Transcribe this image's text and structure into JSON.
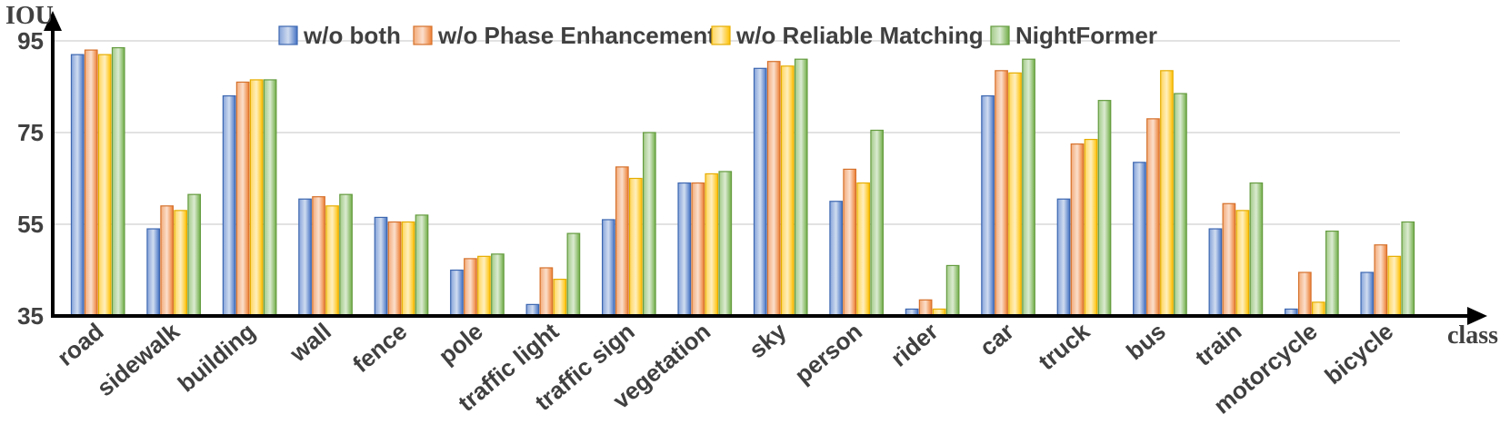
{
  "chart_data": {
    "type": "bar",
    "ylabel": "IOU",
    "xlabel": "class",
    "ylim": [
      35,
      95
    ],
    "yticks": [
      "35",
      "55",
      "75",
      "95"
    ],
    "grid": true,
    "legend_position": "top",
    "categories": [
      "road",
      "sidewalk",
      "building",
      "wall",
      "fence",
      "pole",
      "traffic light",
      "traffic sign",
      "vegetation",
      "sky",
      "person",
      "rider",
      "car",
      "truck",
      "bus",
      "train",
      "motorcycle",
      "bicycle"
    ],
    "series": [
      {
        "name": "w/o both",
        "color": "#4472c4",
        "values": [
          92.0,
          54.0,
          83.0,
          60.5,
          56.5,
          45.0,
          37.5,
          56.0,
          64.0,
          89.0,
          60.0,
          36.5,
          83.0,
          60.5,
          68.5,
          54.0,
          36.5,
          44.5
        ]
      },
      {
        "name": "w/o Phase Enhancement",
        "color": "#ed7d31",
        "values": [
          93.0,
          59.0,
          86.0,
          61.0,
          55.5,
          47.5,
          45.5,
          67.5,
          64.0,
          90.5,
          67.0,
          38.5,
          88.5,
          72.5,
          78.0,
          59.5,
          44.5,
          50.5
        ]
      },
      {
        "name": "w/o Reliable Matching",
        "color": "#ffc000",
        "values": [
          92.0,
          58.0,
          86.5,
          59.0,
          55.5,
          48.0,
          43.0,
          65.0,
          66.0,
          89.5,
          64.0,
          36.5,
          88.0,
          73.5,
          88.5,
          58.0,
          38.0,
          48.0
        ]
      },
      {
        "name": "NightFormer",
        "color": "#70ad47",
        "values": [
          93.5,
          61.5,
          86.5,
          61.5,
          57.0,
          48.5,
          53.0,
          75.0,
          66.5,
          91.0,
          75.5,
          46.0,
          91.0,
          82.0,
          83.5,
          64.0,
          53.5,
          55.5
        ]
      }
    ]
  }
}
